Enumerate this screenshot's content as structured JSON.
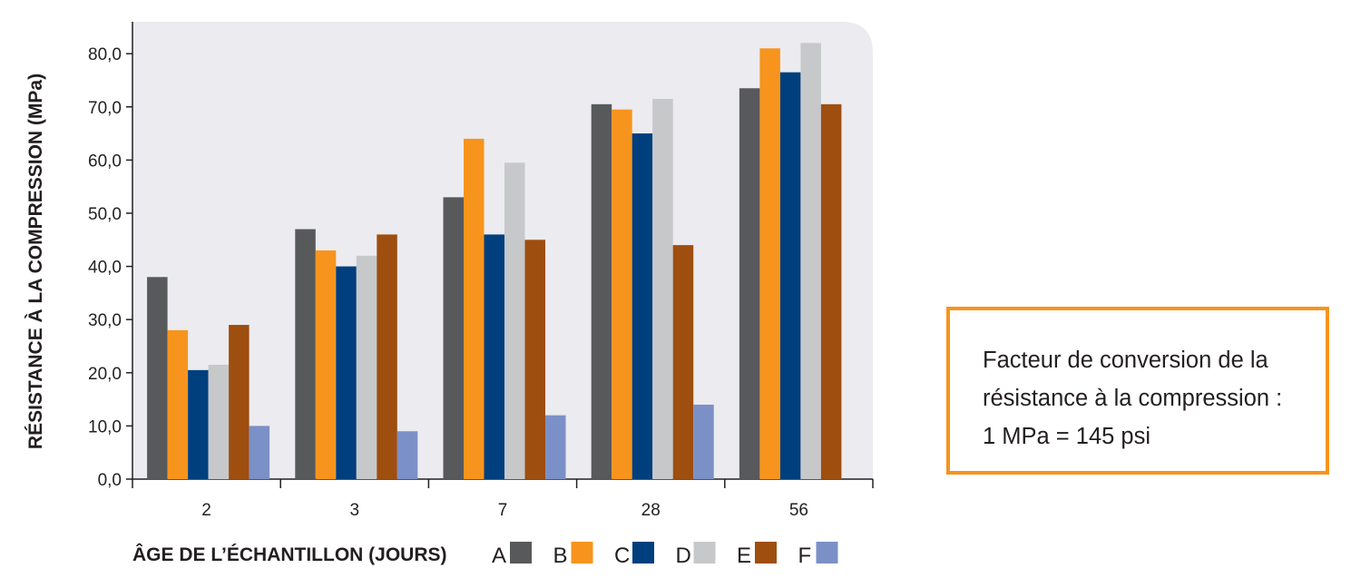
{
  "chart_data": {
    "type": "bar",
    "title": "",
    "xlabel": "ÂGE DE L’ÉCHANTILLON (JOURS)",
    "ylabel": "RÉSISTANCE À LA COMPRESSION (MPa)",
    "ylim": [
      0,
      86
    ],
    "yticks": [
      "0,0",
      "10,0",
      "20,0",
      "30,0",
      "40,0",
      "50,0",
      "60,0",
      "70,0",
      "80,0"
    ],
    "categories": [
      "2",
      "3",
      "7",
      "28",
      "56"
    ],
    "series": [
      {
        "name": "A",
        "color": "#58595b",
        "values": [
          38.0,
          47.0,
          53.0,
          70.5,
          73.5
        ]
      },
      {
        "name": "B",
        "color": "#f7941d",
        "values": [
          28.0,
          43.0,
          64.0,
          69.5,
          81.0
        ]
      },
      {
        "name": "C",
        "color": "#003f7d",
        "values": [
          20.5,
          40.0,
          46.0,
          65.0,
          76.5
        ]
      },
      {
        "name": "D",
        "color": "#c7c8ca",
        "values": [
          21.5,
          42.0,
          59.5,
          71.5,
          82.0
        ]
      },
      {
        "name": "E",
        "color": "#9e4e0f",
        "values": [
          29.0,
          46.0,
          45.0,
          44.0,
          70.5
        ]
      },
      {
        "name": "F",
        "color": "#7b90c6",
        "values": [
          10.0,
          9.0,
          12.0,
          14.0,
          null
        ]
      }
    ],
    "grid": false,
    "legend_position": "bottom"
  },
  "note": {
    "text": "Facteur de conversion de la\nrésistance à la compression :\n1 MPa = 145 psi",
    "border_color": "#f7941d"
  },
  "colors": {
    "plot_background": "#ebebf0",
    "axis": "#231f20"
  }
}
